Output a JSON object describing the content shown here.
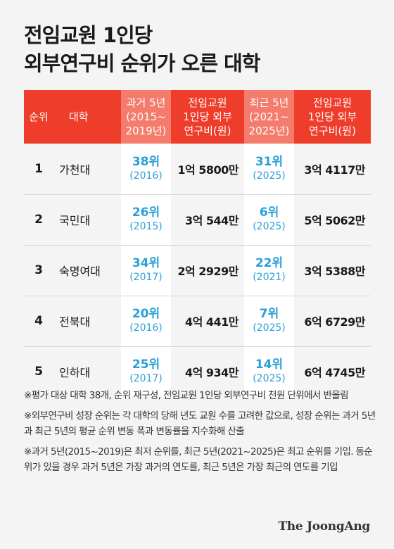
{
  "title": {
    "line1": "전임교원 1인당",
    "line2": "외부연구비 순위가 오른 대학"
  },
  "columns": {
    "rank": "순위",
    "university": "대학",
    "past": [
      "과거 5년",
      "(2015~",
      "2019년)"
    ],
    "past_value": [
      "전임교원",
      "1인당 외부",
      "연구비(원)"
    ],
    "recent": [
      "최근 5년",
      "(2021~",
      "2025년)"
    ],
    "recent_value": [
      "전임교원",
      "1인당 외부",
      "연구비(원)"
    ]
  },
  "rows": [
    {
      "rank": "1",
      "university": "가천대",
      "past_rank": "38위",
      "past_year": "(2016)",
      "past_value": "1억 5800만",
      "recent_rank": "31위",
      "recent_year": "(2025)",
      "recent_value": "3억 4117만"
    },
    {
      "rank": "2",
      "university": "국민대",
      "past_rank": "26위",
      "past_year": "(2015)",
      "past_value": "3억 544만",
      "recent_rank": "6위",
      "recent_year": "(2025)",
      "recent_value": "5억 5062만"
    },
    {
      "rank": "3",
      "university": "숙명여대",
      "past_rank": "34위",
      "past_year": "(2017)",
      "past_value": "2억 2929만",
      "recent_rank": "22위",
      "recent_year": "(2021)",
      "recent_value": "3억 5388만"
    },
    {
      "rank": "4",
      "university": "전북대",
      "past_rank": "20위",
      "past_year": "(2016)",
      "past_value": "4억 441만",
      "recent_rank": "7위",
      "recent_year": "(2025)",
      "recent_value": "6억 6729만"
    },
    {
      "rank": "5",
      "university": "인하대",
      "past_rank": "25위",
      "past_year": "(2017)",
      "past_value": "4억 934만",
      "recent_rank": "14위",
      "recent_year": "(2025)",
      "recent_value": "6억 4745만"
    }
  ],
  "notes": [
    "※평가 대상 대학 38개, 순위 재구성, 전임교원 1인당 외부연구비 천원 단위에서 반올림",
    "※외부연구비 성장 순위는 각 대학의 당해 년도 교원 수를 고려한 값으로, 성장 순위는 과거 5년과 최근 5년의 평균 순위 변동 폭과 변동률을 지수화해 산출",
    "※과거 5년(2015~2019)은 최저 순위를, 최근 5년(2021~2025)은 최고 순위를 기입. 동순위가 있을 경우 과거 5년은 가장 과거의 연도를, 최근 5년은 가장 최근의 연도를 기입"
  ],
  "brand": "The JoongAng",
  "colors": {
    "header_red": "#ee3d2a",
    "header_highlight": "#f57c6c",
    "rank_blue": "#2a9fd8",
    "background": "#f4f4f4"
  }
}
